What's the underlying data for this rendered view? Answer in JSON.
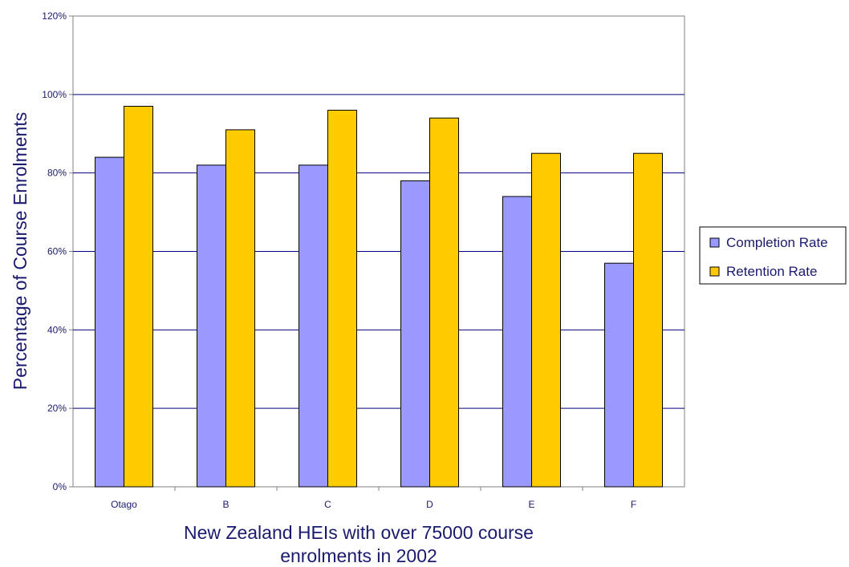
{
  "chart_data": {
    "type": "bar",
    "categories": [
      "Otago",
      "B",
      "C",
      "D",
      "E",
      "F"
    ],
    "series": [
      {
        "name": "Completion Rate",
        "values": [
          84,
          82,
          82,
          78,
          74,
          57
        ],
        "color": "#9999ff"
      },
      {
        "name": "Retention Rate",
        "values": [
          97,
          91,
          96,
          94,
          85,
          85
        ],
        "color": "#ffcc00"
      }
    ],
    "y_ticks": [
      "0%",
      "20%",
      "40%",
      "60%",
      "80%",
      "100%",
      "120%"
    ],
    "ylim": [
      0,
      120
    ],
    "ylabel": "Percentage of Course Enrolments",
    "xlabel_lines": [
      "New Zealand HEIs with over 75000 course",
      "enrolments in 2002"
    ],
    "grid": true,
    "legend_position": "right"
  }
}
